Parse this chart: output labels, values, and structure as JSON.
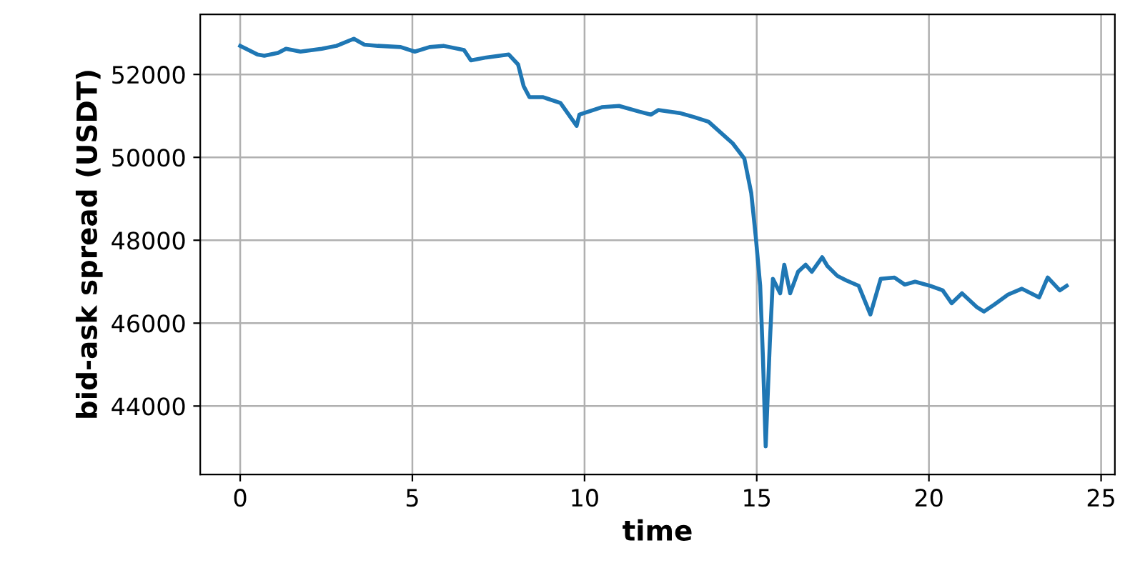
{
  "chart_data": {
    "type": "line",
    "xlabel": "time",
    "ylabel": "bid-ask spread (USDT)",
    "xlim": [
      -1.16,
      25.4
    ],
    "ylim": [
      42350,
      53450
    ],
    "xticks": [
      0,
      5,
      10,
      15,
      20,
      25
    ],
    "yticks": [
      44000,
      46000,
      48000,
      50000,
      52000
    ],
    "grid": true,
    "color": "#1f77b4",
    "x": [
      0,
      0.17,
      0.5,
      0.7,
      1.1,
      1.33,
      1.75,
      2.37,
      2.8,
      3.3,
      3.6,
      4.0,
      4.66,
      5.07,
      5.5,
      5.9,
      6.5,
      6.7,
      7.15,
      7.8,
      8.07,
      8.23,
      8.4,
      8.8,
      9.3,
      9.77,
      9.85,
      10.5,
      11.0,
      11.6,
      11.93,
      12.14,
      12.76,
      13.18,
      13.6,
      14.3,
      14.64,
      14.84,
      14.97,
      15.1,
      15.18,
      15.26,
      15.38,
      15.47,
      15.68,
      15.8,
      15.97,
      16.2,
      16.42,
      16.6,
      16.9,
      17.05,
      17.34,
      17.6,
      17.96,
      18.3,
      18.6,
      19.0,
      19.3,
      19.6,
      20.04,
      20.4,
      20.66,
      20.96,
      21.4,
      21.6,
      21.9,
      22.3,
      22.7,
      23.2,
      23.45,
      23.8,
      24.0
    ],
    "values": [
      52690,
      52620,
      52480,
      52450,
      52520,
      52620,
      52550,
      52620,
      52690,
      52860,
      52720,
      52690,
      52660,
      52550,
      52660,
      52690,
      52590,
      52340,
      52410,
      52480,
      52240,
      51720,
      51450,
      51450,
      51310,
      50760,
      51030,
      51210,
      51240,
      51100,
      51030,
      51140,
      51070,
      50970,
      50860,
      50340,
      49970,
      49140,
      48100,
      46900,
      45170,
      43030,
      45520,
      47070,
      46720,
      47410,
      46720,
      47240,
      47410,
      47240,
      47590,
      47380,
      47140,
      47030,
      46900,
      46210,
      47070,
      47100,
      46930,
      47000,
      46900,
      46790,
      46480,
      46720,
      46380,
      46280,
      46450,
      46690,
      46830,
      46620,
      47100,
      46790,
      46900
    ]
  }
}
